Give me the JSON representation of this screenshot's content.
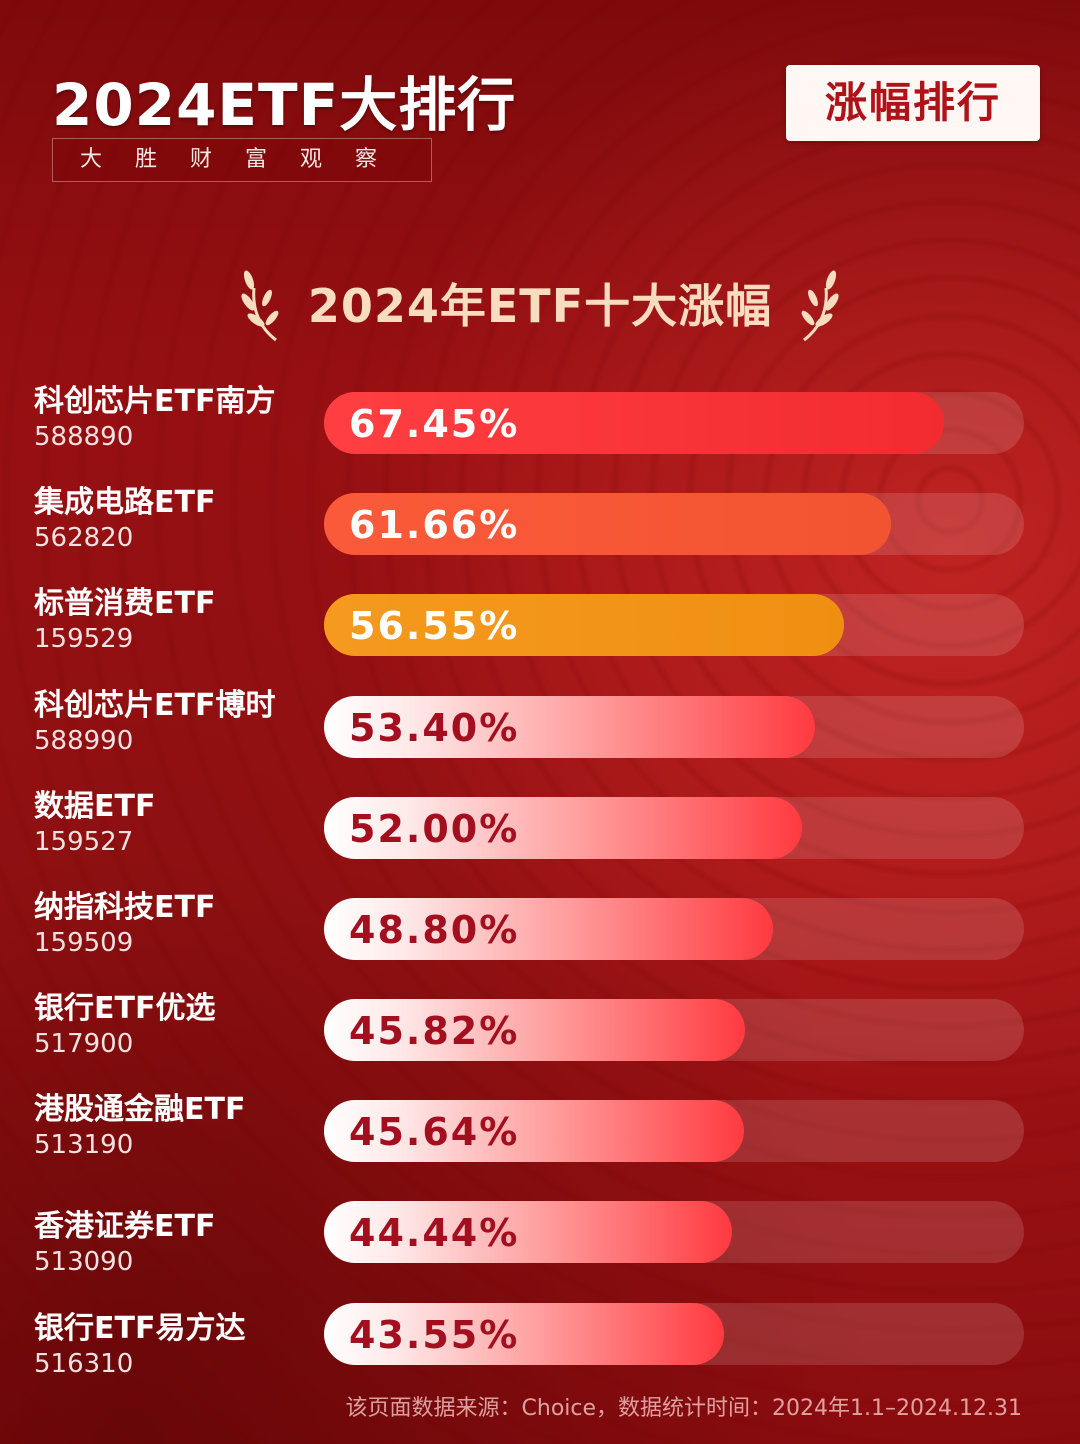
{
  "header": {
    "title": "2024ETF大排行",
    "subtitle": "大胜财富观察",
    "badge": "涨幅排行"
  },
  "section_title": "2024年ETF十大涨幅",
  "colors": {
    "background": "#9a1013",
    "bar_top1": "#f22b30",
    "bar_top2": "#f25431",
    "bar_top3": "#ef8f12",
    "bar_rest": "#ff3a40",
    "label_dark": "#a40f20"
  },
  "chart_data": {
    "type": "bar",
    "orientation": "horizontal",
    "title": "2024年ETF十大涨幅",
    "categories": [
      "科创芯片ETF南方",
      "集成电路ETF",
      "标普消费ETF",
      "科创芯片ETF博时",
      "数据ETF",
      "纳指科技ETF",
      "银行ETF优选",
      "港股通金融ETF",
      "香港证券ETF",
      "银行ETF易方达"
    ],
    "codes": [
      "588890",
      "562820",
      "159529",
      "588990",
      "159527",
      "159509",
      "517900",
      "513190",
      "513090",
      "516310"
    ],
    "values": [
      67.45,
      61.66,
      56.55,
      53.4,
      52.0,
      48.8,
      45.82,
      45.64,
      44.44,
      43.55
    ],
    "value_labels": [
      "67.45%",
      "61.66%",
      "56.55%",
      "53.40%",
      "52.00%",
      "48.80%",
      "45.82%",
      "45.64%",
      "44.44%",
      "43.55%"
    ],
    "unit": "%",
    "grid": false,
    "legend": "none"
  },
  "footer": "该页面数据来源：Choice，数据统计时间：2024年1.1–2024.12.31"
}
